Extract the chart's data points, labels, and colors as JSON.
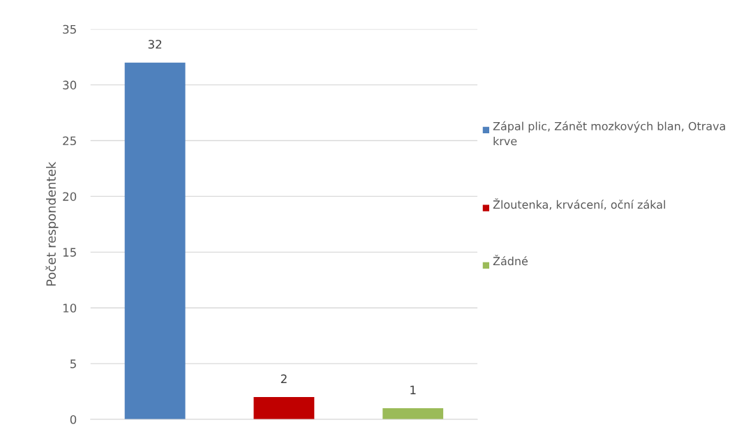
{
  "chart_data": {
    "type": "bar",
    "ylabel": "Počet respondentek",
    "categories": [
      null,
      null,
      null
    ],
    "series": [
      {
        "name": "Zápal plic, Zánět mozkových blan, Otrava krve",
        "color": "#4f81bd",
        "values": [
          32,
          null,
          null
        ]
      },
      {
        "name": "Žloutenka, krvácení, oční zákal",
        "color": "#c00000",
        "values": [
          null,
          2,
          null
        ]
      },
      {
        "name": "Žádné",
        "color": "#9bbb59",
        "values": [
          null,
          null,
          1
        ]
      }
    ],
    "ylim": [
      0,
      35
    ],
    "yticks": [
      0,
      5,
      10,
      15,
      20,
      25,
      30,
      35
    ],
    "grid": "y",
    "legend": "right",
    "data_labels": true
  }
}
